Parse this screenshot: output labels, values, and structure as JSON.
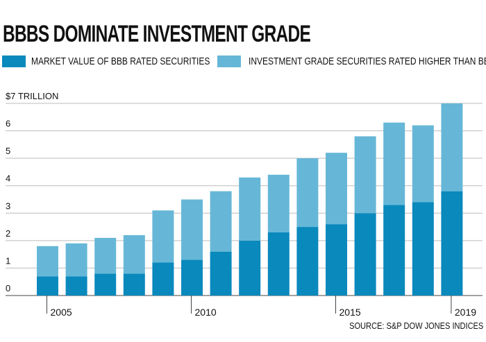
{
  "title": "BBBS DOMINATE INVESTMENT GRADE",
  "source": "SOURCE: S&P DOW JONES INDICES",
  "chart_data": {
    "type": "bar",
    "stacked": true,
    "title": "BBBS DOMINATE INVESTMENT GRADE",
    "ylabel": "$7 TRILLION",
    "ylim": [
      0,
      7
    ],
    "yticks": [
      "0",
      "1",
      "2",
      "3",
      "4",
      "5",
      "6",
      "$7 TRILLION"
    ],
    "grid": true,
    "legend": "top",
    "categories": [
      2005,
      2006,
      2007,
      2008,
      2009,
      2010,
      2011,
      2012,
      2013,
      2014,
      2015,
      2016,
      2017,
      2018,
      2019
    ],
    "xtick_labels": [
      {
        "year": 2005,
        "label": "2005"
      },
      {
        "year": 2010,
        "label": "2010"
      },
      {
        "year": 2015,
        "label": "2015"
      },
      {
        "year": 2019,
        "label": "2019"
      }
    ],
    "series": [
      {
        "name": "MARKET VALUE OF BBB RATED SECURITIES",
        "color": "#0a89bd",
        "values": [
          0.7,
          0.7,
          0.8,
          0.8,
          1.2,
          1.3,
          1.6,
          2.0,
          2.3,
          2.5,
          2.6,
          3.0,
          3.3,
          3.4,
          3.8
        ]
      },
      {
        "name": "INVESTMENT GRADE SECURITIES RATED HIGHER THAN BBB",
        "color": "#66b7d7",
        "values": [
          1.1,
          1.2,
          1.3,
          1.4,
          1.9,
          2.2,
          2.2,
          2.3,
          2.1,
          2.5,
          2.6,
          2.8,
          3.0,
          2.8,
          3.2
        ]
      }
    ]
  }
}
